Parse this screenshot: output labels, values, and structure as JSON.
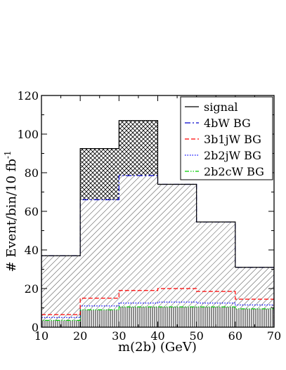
{
  "chart_data": {
    "type": "histogram",
    "xlabel": "m(2b) (GeV)",
    "ylabel": "# Event/bin/10 fb",
    "ylabel_superscript": "-1",
    "xlim": [
      10,
      70
    ],
    "ylim": [
      0,
      120
    ],
    "xticks": [
      10,
      20,
      30,
      40,
      50,
      60,
      70
    ],
    "yticks": [
      0,
      20,
      40,
      60,
      80,
      100,
      120
    ],
    "bin_edges": [
      10,
      20,
      30,
      40,
      50,
      60,
      70
    ],
    "legend_position": "top-right",
    "series": [
      {
        "name": "signal",
        "style": "solid",
        "color": "#000000",
        "values": [
          37,
          92.5,
          107,
          74,
          54.5,
          31
        ]
      },
      {
        "name": "4bW BG",
        "style": "dash-dot",
        "color": "#0000cc",
        "values": [
          37,
          66,
          78.5,
          74,
          54.5,
          31
        ]
      },
      {
        "name": "3b1jW BG",
        "style": "dashed",
        "color": "#ff0000",
        "values": [
          6.5,
          15,
          19,
          20,
          18.5,
          14.5
        ]
      },
      {
        "name": "2b2jW BG",
        "style": "dotted",
        "color": "#0000ff",
        "values": [
          5,
          11,
          12.5,
          13,
          12.5,
          11.5
        ]
      },
      {
        "name": "2b2cW BG",
        "style": "dash-dot-dot",
        "color": "#00cc00",
        "values": [
          3.5,
          9,
          10.5,
          10.5,
          10.5,
          9.5
        ]
      }
    ]
  }
}
